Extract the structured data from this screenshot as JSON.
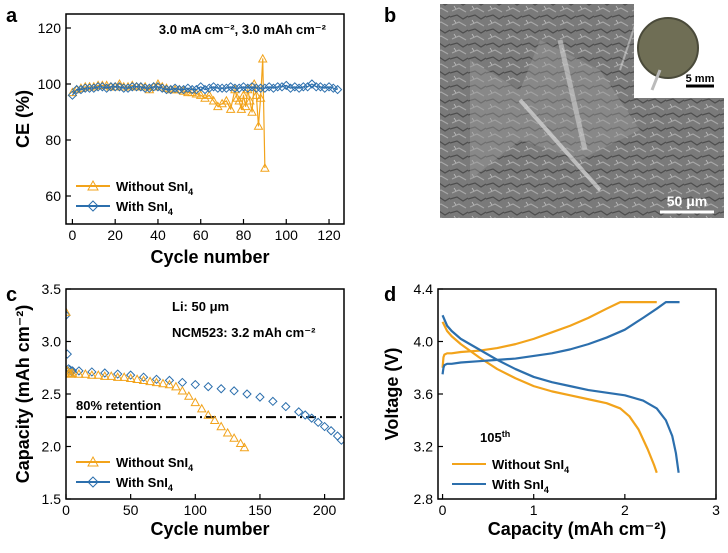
{
  "panels": {
    "a": {
      "letter": "a"
    },
    "b": {
      "letter": "b",
      "scalebar_label": "50 μm",
      "inset_scalebar_label": "5 mm"
    },
    "c": {
      "letter": "c"
    },
    "d": {
      "letter": "d"
    }
  },
  "colors": {
    "without": "#F2A31B",
    "with": "#2C6FAD"
  },
  "chart_data": [
    {
      "id": "a",
      "type": "line",
      "annotation": "3.0 mA cm⁻², 3.0 mAh cm⁻²",
      "xlabel": "Cycle number",
      "ylabel": "CE (%)",
      "xlim": [
        -3,
        127
      ],
      "ylim": [
        50,
        125
      ],
      "xticks": [
        0,
        20,
        40,
        60,
        80,
        100,
        120
      ],
      "yticks": [
        60,
        80,
        100,
        120
      ],
      "series": [
        {
          "name": "Without SnI4",
          "label_main": "Without SnI",
          "label_sub": "4",
          "color": "#F2A31B",
          "marker": "triangle",
          "x": [
            0,
            2,
            4,
            6,
            8,
            10,
            12,
            14,
            16,
            18,
            20,
            22,
            24,
            26,
            28,
            30,
            32,
            34,
            36,
            38,
            40,
            42,
            44,
            46,
            48,
            50,
            52,
            54,
            56,
            58,
            60,
            62,
            64,
            66,
            68,
            70,
            72,
            74,
            76,
            77,
            78,
            79,
            80,
            81,
            82,
            83,
            84,
            85,
            86,
            87,
            88,
            89,
            90
          ],
          "y": [
            97,
            98,
            98.5,
            99,
            99,
            99,
            99.5,
            99.5,
            99.5,
            99,
            99,
            100,
            99,
            99,
            99.5,
            99,
            99,
            99,
            98,
            99,
            100,
            99,
            98.5,
            98,
            98,
            98,
            97.5,
            97,
            97,
            96.5,
            96,
            95,
            96,
            94,
            92,
            93,
            94,
            91,
            98,
            95,
            94,
            91,
            96,
            92,
            98,
            94,
            90,
            100,
            96,
            85,
            95,
            109,
            70
          ]
        },
        {
          "name": "With SnI4",
          "label_main": "With SnI",
          "label_sub": "4",
          "color": "#2C6FAD",
          "marker": "diamond",
          "x": [
            0,
            2,
            4,
            6,
            8,
            10,
            12,
            14,
            16,
            18,
            20,
            22,
            24,
            26,
            28,
            30,
            32,
            34,
            36,
            38,
            40,
            42,
            44,
            46,
            48,
            50,
            52,
            54,
            56,
            58,
            60,
            62,
            64,
            66,
            68,
            70,
            72,
            74,
            76,
            78,
            80,
            82,
            84,
            86,
            88,
            90,
            92,
            94,
            96,
            98,
            100,
            102,
            104,
            106,
            108,
            110,
            112,
            114,
            116,
            118,
            120,
            122,
            124
          ],
          "y": [
            96,
            98,
            98,
            98.5,
            98.5,
            98.5,
            99,
            99,
            98.5,
            99,
            99,
            99,
            98.5,
            98.5,
            99,
            99,
            99,
            98.5,
            98.5,
            99,
            99,
            98.5,
            98,
            98,
            98.5,
            98,
            98,
            98.5,
            98,
            98,
            99,
            98,
            98.5,
            99,
            98.5,
            98.5,
            98.5,
            99,
            98.5,
            98.5,
            99,
            98.5,
            99,
            98.5,
            98.5,
            98.5,
            99,
            98.5,
            99,
            99,
            99.5,
            98.5,
            99,
            98.5,
            99,
            99,
            100,
            99,
            99,
            98.5,
            99,
            98.5,
            98
          ]
        }
      ]
    },
    {
      "id": "c",
      "type": "scatter",
      "annotations": [
        "Li: 50 μm",
        "NCM523: 3.2 mAh cm⁻²"
      ],
      "reference_line": {
        "y": 2.28,
        "label": "80% retention"
      },
      "xlabel": "Cycle number",
      "ylabel": "Capacity (mAh cm⁻²)",
      "xlim": [
        0,
        215
      ],
      "ylim": [
        1.5,
        3.5
      ],
      "xticks": [
        0,
        50,
        100,
        150,
        200
      ],
      "yticks": [
        1.5,
        2.0,
        2.5,
        3.0,
        3.5
      ],
      "series": [
        {
          "name": "Without SnI4",
          "label_main": "Without SnI",
          "label_sub": "4",
          "color": "#F2A31B",
          "marker": "triangle",
          "x": [
            0,
            1,
            2,
            3,
            4,
            5,
            10,
            15,
            20,
            25,
            30,
            35,
            40,
            45,
            50,
            55,
            60,
            65,
            70,
            75,
            80,
            85,
            90,
            95,
            100,
            105,
            110,
            115,
            120,
            125,
            130,
            135,
            138
          ],
          "y": [
            3.28,
            2.72,
            2.7,
            2.7,
            2.69,
            2.7,
            2.69,
            2.69,
            2.68,
            2.68,
            2.67,
            2.67,
            2.66,
            2.66,
            2.65,
            2.64,
            2.63,
            2.62,
            2.61,
            2.6,
            2.59,
            2.57,
            2.53,
            2.48,
            2.42,
            2.36,
            2.3,
            2.25,
            2.19,
            2.13,
            2.08,
            2.03,
            1.99
          ]
        },
        {
          "name": "With SnI4",
          "label_main": "With SnI",
          "label_sub": "4",
          "color": "#2C6FAD",
          "marker": "diamond",
          "x": [
            0,
            1,
            2,
            3,
            4,
            5,
            10,
            20,
            30,
            40,
            50,
            60,
            70,
            80,
            90,
            100,
            110,
            120,
            130,
            140,
            150,
            160,
            170,
            180,
            185,
            190,
            195,
            200,
            205,
            210,
            213
          ],
          "y": [
            3.25,
            2.88,
            2.74,
            2.73,
            2.72,
            2.72,
            2.72,
            2.71,
            2.7,
            2.69,
            2.68,
            2.66,
            2.64,
            2.63,
            2.61,
            2.59,
            2.57,
            2.55,
            2.53,
            2.5,
            2.47,
            2.43,
            2.38,
            2.33,
            2.3,
            2.27,
            2.23,
            2.19,
            2.15,
            2.1,
            2.06
          ]
        }
      ]
    },
    {
      "id": "d",
      "type": "line",
      "annotation_main": "105",
      "annotation_sup": "th",
      "xlabel": "Capacity (mAh cm⁻²)",
      "ylabel": "Voltage (V)",
      "xlim": [
        -0.05,
        3.0
      ],
      "ylim": [
        2.8,
        4.4
      ],
      "xticks": [
        0,
        1,
        2,
        3
      ],
      "yticks": [
        2.8,
        3.2,
        3.6,
        4.0,
        4.4
      ],
      "series": [
        {
          "name": "Without SnI4",
          "label_main": "Without SnI",
          "label_sub": "4",
          "color": "#F2A31B",
          "charge": {
            "x": [
              0,
              0.01,
              0.02,
              0.05,
              0.1,
              0.2,
              0.4,
              0.6,
              0.8,
              1.0,
              1.2,
              1.4,
              1.6,
              1.8,
              1.95,
              2.2,
              2.35
            ],
            "y": [
              3.8,
              3.88,
              3.9,
              3.91,
              3.91,
              3.92,
              3.93,
              3.95,
              3.98,
              4.02,
              4.07,
              4.12,
              4.18,
              4.25,
              4.3,
              4.3,
              4.3
            ]
          },
          "discharge": {
            "x": [
              0,
              0.05,
              0.1,
              0.2,
              0.4,
              0.6,
              0.8,
              1.0,
              1.2,
              1.4,
              1.6,
              1.8,
              1.95,
              2.05,
              2.15,
              2.25,
              2.32,
              2.35
            ],
            "y": [
              4.15,
              4.08,
              4.04,
              3.98,
              3.88,
              3.79,
              3.72,
              3.66,
              3.62,
              3.59,
              3.56,
              3.53,
              3.49,
              3.43,
              3.33,
              3.18,
              3.06,
              3.0
            ]
          }
        },
        {
          "name": "With SnI4",
          "label_main": "With SnI",
          "label_sub": "4",
          "color": "#2C6FAD",
          "charge": {
            "x": [
              0,
              0.01,
              0.02,
              0.05,
              0.1,
              0.2,
              0.4,
              0.6,
              0.8,
              1.0,
              1.2,
              1.4,
              1.6,
              1.8,
              2.0,
              2.2,
              2.35,
              2.45,
              2.6
            ],
            "y": [
              3.75,
              3.8,
              3.82,
              3.83,
              3.83,
              3.84,
              3.85,
              3.86,
              3.87,
              3.89,
              3.91,
              3.94,
              3.98,
              4.03,
              4.09,
              4.18,
              4.25,
              4.3,
              4.3
            ]
          },
          "discharge": {
            "x": [
              0,
              0.05,
              0.1,
              0.2,
              0.4,
              0.6,
              0.8,
              1.0,
              1.2,
              1.4,
              1.6,
              1.8,
              2.0,
              2.2,
              2.35,
              2.45,
              2.52,
              2.56,
              2.59
            ],
            "y": [
              4.2,
              4.12,
              4.08,
              4.02,
              3.94,
              3.86,
              3.79,
              3.73,
              3.69,
              3.66,
              3.63,
              3.61,
              3.59,
              3.55,
              3.49,
              3.4,
              3.28,
              3.15,
              3.0
            ]
          }
        }
      ]
    }
  ]
}
